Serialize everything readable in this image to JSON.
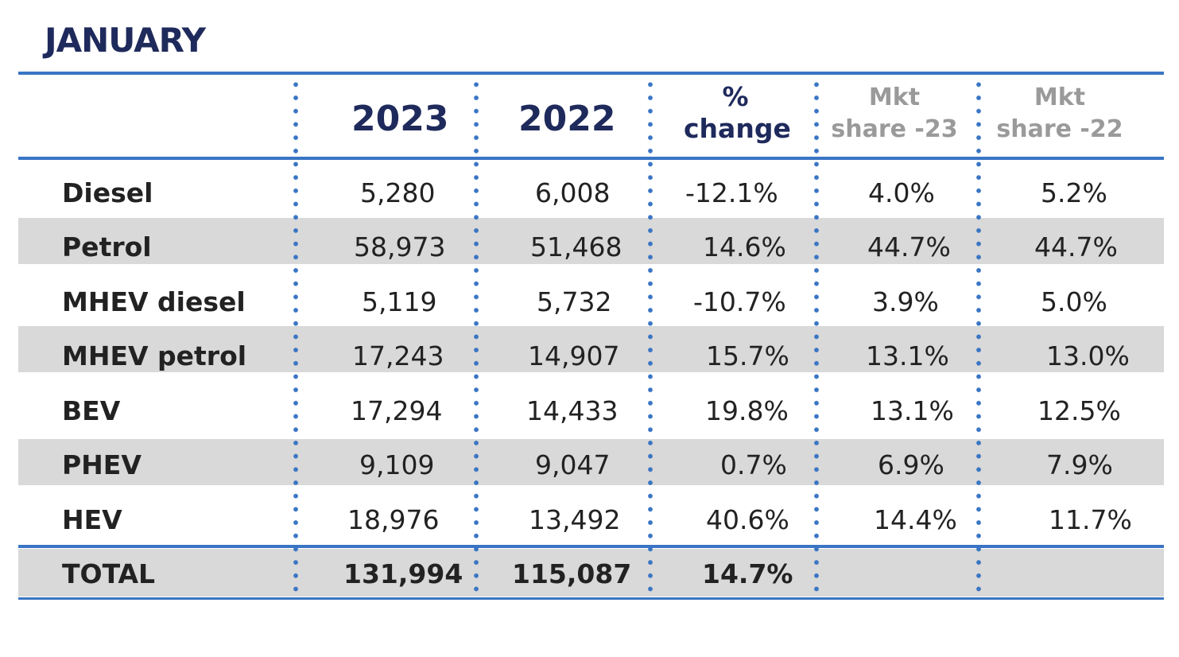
{
  "title": "JANUARY",
  "chart_data": {
    "type": "table",
    "columns": [
      "",
      "2023",
      "2022",
      "% change",
      "Mkt share -23",
      "Mkt share -22"
    ],
    "header": {
      "y2023": "2023",
      "y2022": "2022",
      "pct_line1": "%",
      "pct_line2": "change",
      "mkt23_line1": "Mkt",
      "mkt23_line2": "share -23",
      "mkt22_line1": "Mkt",
      "mkt22_line2": "share -22"
    },
    "rows": [
      {
        "label": "Diesel",
        "v2023": "5,280",
        "v2022": "6,008",
        "change": "-12.1%",
        "share23": "4.0%",
        "share22": "5.2%"
      },
      {
        "label": "Petrol",
        "v2023": "58,973",
        "v2022": "51,468",
        "change": "14.6%",
        "share23": "44.7%",
        "share22": "44.7%"
      },
      {
        "label": "MHEV diesel",
        "v2023": "5,119",
        "v2022": "5,732",
        "change": "-10.7%",
        "share23": "3.9%",
        "share22": "5.0%"
      },
      {
        "label": "MHEV petrol",
        "v2023": "17,243",
        "v2022": "14,907",
        "change": "15.7%",
        "share23": "13.1%",
        "share22": "13.0%"
      },
      {
        "label": "BEV",
        "v2023": "17,294",
        "v2022": "14,433",
        "change": "19.8%",
        "share23": "13.1%",
        "share22": "12.5%"
      },
      {
        "label": "PHEV",
        "v2023": "9,109",
        "v2022": "9,047",
        "change": "0.7%",
        "share23": "6.9%",
        "share22": "7.9%"
      },
      {
        "label": "HEV",
        "v2023": "18,976",
        "v2022": "13,492",
        "change": "40.6%",
        "share23": "14.4%",
        "share22": "11.7%"
      }
    ],
    "total": {
      "label": "TOTAL",
      "v2023": "131,994",
      "v2022": "115,087",
      "change": "14.7%",
      "share23": "",
      "share22": ""
    }
  },
  "colors": {
    "rule": "#3a75c4",
    "band": "#d9d9d9",
    "title": "#1f2a5c",
    "mkt_header": "#9a9a9a",
    "text": "#222222"
  }
}
